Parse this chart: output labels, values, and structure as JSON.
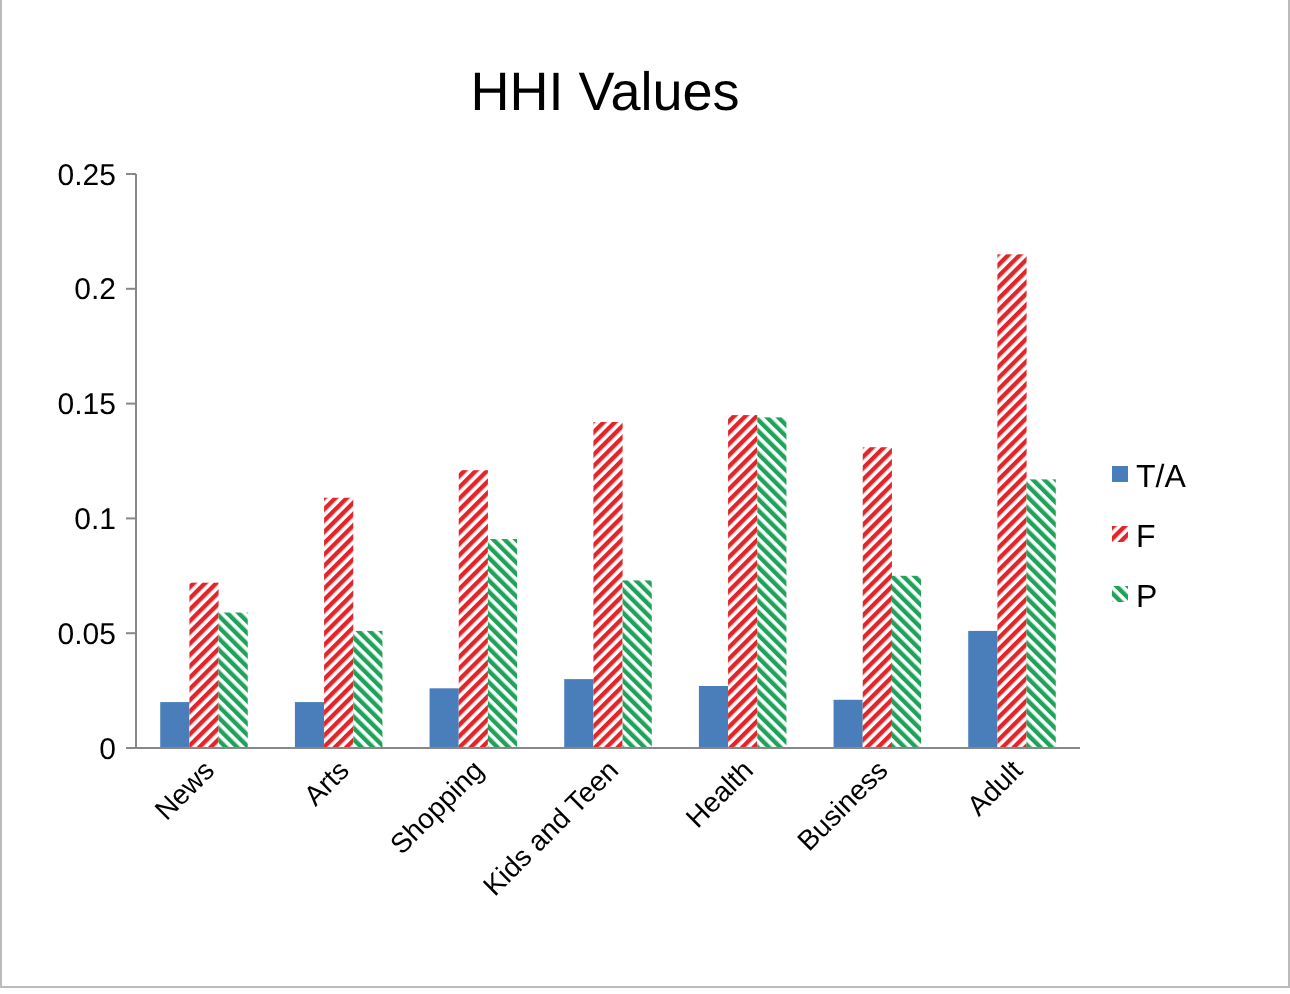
{
  "chart_data": {
    "type": "bar",
    "title": "HHI Values",
    "categories": [
      "News",
      "Arts",
      "Shopping",
      "Kids and Teen",
      "Health",
      "Business",
      "Adult"
    ],
    "series": [
      {
        "name": "T/A",
        "color": "#4a7ebb",
        "values": [
          0.02,
          0.02,
          0.026,
          0.03,
          0.027,
          0.021,
          0.051
        ]
      },
      {
        "name": "F",
        "color": "#e0262b",
        "values": [
          0.072,
          0.109,
          0.121,
          0.142,
          0.145,
          0.131,
          0.215
        ]
      },
      {
        "name": "P",
        "color": "#1fa35a",
        "values": [
          0.059,
          0.051,
          0.091,
          0.073,
          0.144,
          0.075,
          0.117
        ]
      }
    ],
    "ylim": [
      0,
      0.25
    ],
    "yticks": [
      0,
      {
        "value": 0.05,
        "label": "0.05"
      },
      {
        "value": 0.1,
        "label": "0.1"
      },
      {
        "value": 0.15,
        "label": "0.15"
      },
      {
        "value": 0.2,
        "label": "0.2"
      },
      {
        "value": 0.25,
        "label": "0.25"
      }
    ],
    "grid": false,
    "legend": "right"
  }
}
